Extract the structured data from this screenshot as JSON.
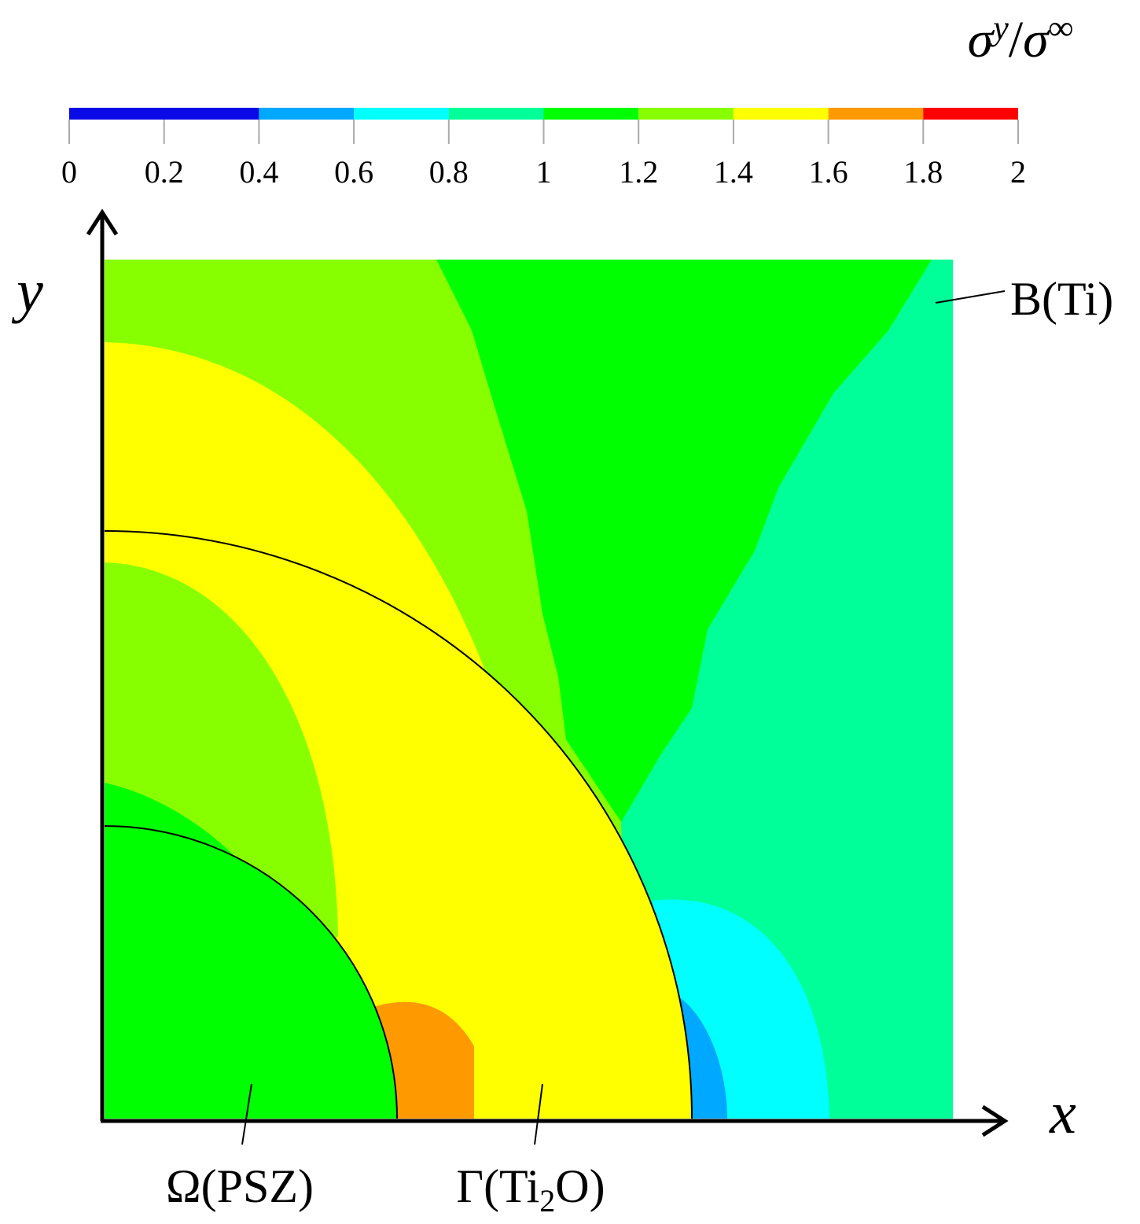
{
  "chart_data": {
    "type": "contour",
    "colorbar_title": {
      "base1": "σ",
      "sup1": "y",
      "sep": "/",
      "base2": "σ",
      "sup2": "∞"
    },
    "colorbar_lim": [
      0,
      2
    ],
    "colorbar_ticks": [
      0,
      0.2,
      0.4,
      0.6,
      0.8,
      1,
      1.2,
      1.4,
      1.6,
      1.8,
      2
    ],
    "levels": [
      0,
      0.4,
      0.6,
      0.8,
      1,
      1.2,
      1.4,
      1.6,
      1.8,
      2
    ],
    "colors": [
      "#0a0ae6",
      "#00a8ff",
      "#00ffff",
      "#00ff99",
      "#00ff00",
      "#88ff00",
      "#ffff00",
      "#ff9900",
      "#ff0000"
    ],
    "x_label": "x",
    "y_label": "y",
    "annotations": {
      "matrix": "B(Ti)",
      "particle": "Ω(PSZ)",
      "interphase": {
        "before": "Γ(Ti",
        "sub": "2",
        "after": "O)"
      }
    }
  }
}
